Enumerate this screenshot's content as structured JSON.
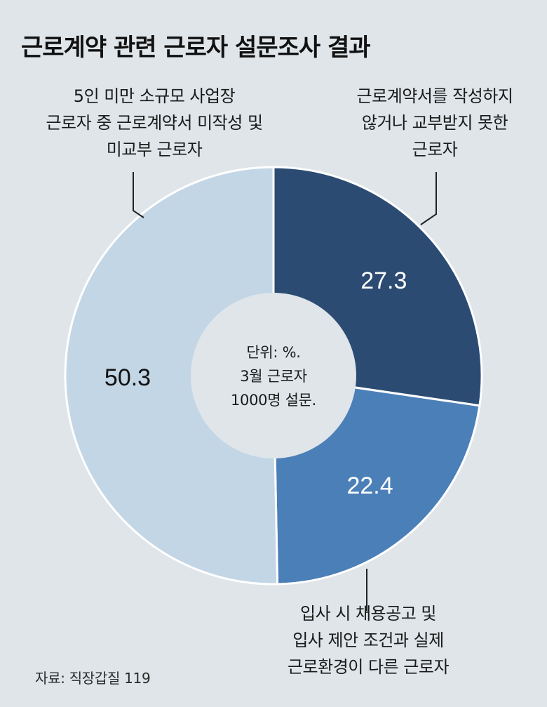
{
  "title": "근로계약 관련 근로자 설문조사 결과",
  "center_note": [
    "단위: %.",
    "3월 근로자",
    "1000명 설문."
  ],
  "source": "자료: 직장갑질 119",
  "callouts": {
    "left": [
      "5인 미만 소규모 사업장",
      "근로자 중 근로계약서 미작성 및",
      "미교부 근로자"
    ],
    "right": [
      "근로계약서를 작성하지",
      "않거나 교부받지 못한",
      "근로자"
    ],
    "bottom": [
      "입사 시 채용공고 및",
      "입사 제안 조건과 실제",
      "근로환경이 다른 근로자"
    ]
  },
  "colors": {
    "background": "#dfe5e9",
    "slice_dark": "#2b4b73",
    "slice_mid": "#4b7fb8",
    "slice_light": "#c3d6e6",
    "hole": "#dfe5e9"
  },
  "chart_data": {
    "type": "pie",
    "title": "근로계약 관련 근로자 설문조사 결과",
    "unit": "%",
    "slices": [
      {
        "label": "근로계약서를 작성하지 않거나 교부받지 못한 근로자",
        "value": 27.3,
        "display": "27.3",
        "color": "#2b4b73",
        "text_color": "#ffffff"
      },
      {
        "label": "입사 시 채용공고 및 입사 제안 조건과 실제 근로환경이 다른 근로자",
        "value": 22.4,
        "display": "22.4",
        "color": "#4b7fb8",
        "text_color": "#ffffff"
      },
      {
        "label": "5인 미만 소규모 사업장 근로자 중 근로계약서 미작성 및 미교부 근로자",
        "value": 50.3,
        "display": "50.3",
        "color": "#c3d6e6",
        "text_color": "#111111"
      }
    ]
  }
}
